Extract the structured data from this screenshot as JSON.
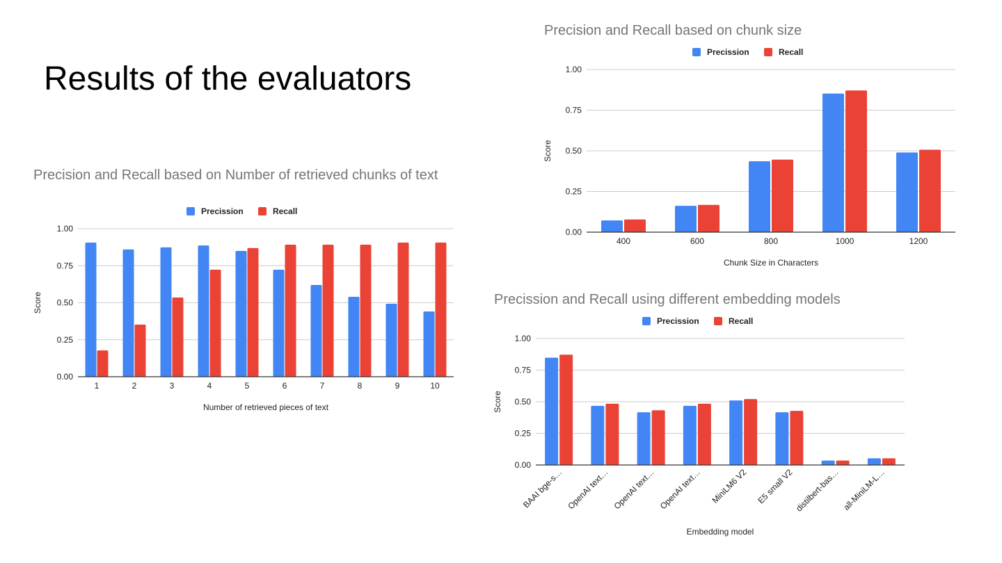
{
  "slide": {
    "title": "Results of the evaluators"
  },
  "colors": {
    "precision": "#4285f4",
    "recall": "#ea4335",
    "grid": "#cccccc",
    "axis": "#333333",
    "title": "#757575",
    "text": "#222222"
  },
  "chart_data": [
    {
      "type": "bar",
      "title": "Precision and Recall based on Number of retrieved chunks of text",
      "xlabel": "Number of retrieved pieces of text",
      "ylabel": "Score",
      "ylim": [
        0,
        1
      ],
      "yticks": [
        "0.00",
        "0.25",
        "0.50",
        "0.75",
        "1.00"
      ],
      "grid": true,
      "legend": "top-center",
      "categories": [
        "1",
        "2",
        "3",
        "4",
        "5",
        "6",
        "7",
        "8",
        "9",
        "10"
      ],
      "series": [
        {
          "name": "Precission",
          "values": [
            0.906,
            0.86,
            0.874,
            0.887,
            0.85,
            0.723,
            0.62,
            0.54,
            0.493,
            0.441
          ]
        },
        {
          "name": "Recall",
          "values": [
            0.178,
            0.352,
            0.535,
            0.723,
            0.869,
            0.892,
            0.892,
            0.892,
            0.906,
            0.906
          ]
        }
      ]
    },
    {
      "type": "bar",
      "title": "Precision and Recall based on chunk size",
      "xlabel": "Chunk Size in Characters",
      "ylabel": "Score",
      "ylim": [
        0,
        1
      ],
      "yticks": [
        "0.00",
        "0.25",
        "0.50",
        "0.75",
        "1.00"
      ],
      "grid": true,
      "legend": "top-center",
      "categories": [
        "400",
        "600",
        "800",
        "1000",
        "1200"
      ],
      "series": [
        {
          "name": "Precission",
          "values": [
            0.072,
            0.162,
            0.436,
            0.852,
            0.49
          ]
        },
        {
          "name": "Recall",
          "values": [
            0.078,
            0.168,
            0.446,
            0.871,
            0.507
          ]
        }
      ]
    },
    {
      "type": "bar",
      "title": "Precission and Recall using different embedding models",
      "xlabel": "Embedding model",
      "ylabel": "Score",
      "ylim": [
        0,
        1
      ],
      "yticks": [
        "0.00",
        "0.25",
        "0.50",
        "0.75",
        "1.00"
      ],
      "grid": true,
      "legend": "top-center",
      "categories": [
        "BAAI bge-s…",
        "OpenAI text…",
        "OpenAI text…",
        "OpenAI text…",
        "MiniLM6 V2",
        "E5 small V2",
        "distilbert-bas…",
        "all-MiniLM-L…"
      ],
      "series": [
        {
          "name": "Precission",
          "values": [
            0.848,
            0.468,
            0.417,
            0.468,
            0.51,
            0.417,
            0.035,
            0.053
          ]
        },
        {
          "name": "Recall",
          "values": [
            0.872,
            0.484,
            0.433,
            0.484,
            0.521,
            0.428,
            0.035,
            0.053
          ]
        }
      ]
    }
  ]
}
